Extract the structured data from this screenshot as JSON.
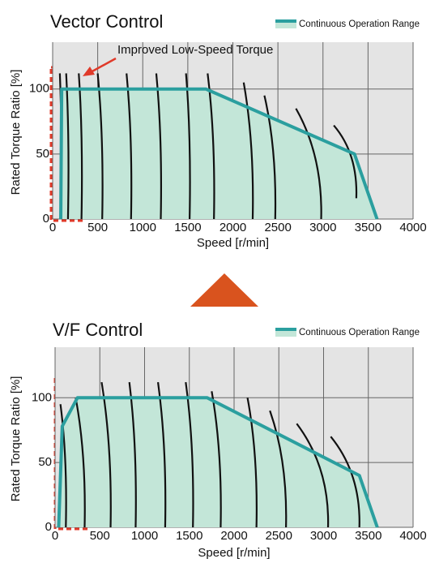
{
  "chart_data": [
    {
      "type": "area",
      "title": "Vector Control",
      "xlabel": "Speed [r/min]",
      "ylabel": "Rated Torque Ratio [%]",
      "annotation": "Improved Low-Speed Torque",
      "xlim": [
        0,
        4000
      ],
      "xticks": [
        0,
        500,
        1000,
        1500,
        2000,
        2500,
        3000,
        3500,
        4000
      ],
      "ylim": [
        0,
        136
      ],
      "yticks": [
        0,
        50,
        100
      ],
      "grid": true,
      "series": [
        {
          "name": "Continuous Operation Range",
          "color": "#2b9f9f",
          "fill": "#c3e6d8",
          "x": [
            90,
            100,
            1700,
            3350,
            3600
          ],
          "values": [
            0,
            100,
            100,
            50,
            0
          ]
        }
      ],
      "curve_color": "#111111",
      "curves": [
        {
          "x": [
            80,
            90
          ],
          "values": [
            112,
            0
          ]
        },
        {
          "x": [
            150,
            170
          ],
          "values": [
            112,
            0
          ]
        },
        {
          "x": [
            290,
            320
          ],
          "values": [
            112,
            0
          ]
        },
        {
          "x": [
            500,
            550
          ],
          "values": [
            112,
            0
          ]
        },
        {
          "x": [
            820,
            870
          ],
          "values": [
            112,
            0
          ]
        },
        {
          "x": [
            1150,
            1200
          ],
          "values": [
            112,
            0
          ]
        },
        {
          "x": [
            1480,
            1520
          ],
          "values": [
            112,
            0
          ]
        },
        {
          "x": [
            1720,
            1790
          ],
          "values": [
            112,
            0
          ]
        },
        {
          "x": [
            2120,
            2220
          ],
          "values": [
            105,
            0
          ]
        },
        {
          "x": [
            2350,
            2470
          ],
          "values": [
            95,
            0
          ]
        },
        {
          "x": [
            2700,
            2980
          ],
          "values": [
            85,
            0
          ]
        },
        {
          "x": [
            3120,
            3370
          ],
          "values": [
            72,
            16
          ]
        }
      ]
    },
    {
      "type": "area",
      "title": "V/F Control",
      "xlabel": "Speed [r/min]",
      "ylabel": "Rated Torque Ratio [%]",
      "xlim": [
        0,
        4000
      ],
      "xticks": [
        0,
        500,
        1000,
        1500,
        2000,
        2500,
        3000,
        3500,
        4000
      ],
      "ylim": [
        0,
        139
      ],
      "yticks": [
        0,
        50,
        100
      ],
      "grid": true,
      "series": [
        {
          "name": "Continuous Operation Range",
          "color": "#2b9f9f",
          "fill": "#c3e6d8",
          "x": [
            40,
            80,
            250,
            1700,
            3400,
            3600
          ],
          "values": [
            0,
            78,
            100,
            100,
            40,
            0
          ]
        }
      ],
      "curve_color": "#111111",
      "curves": [
        {
          "x": [
            60,
            120
          ],
          "values": [
            95,
            0
          ]
        },
        {
          "x": [
            230,
            330
          ],
          "values": [
            100,
            0
          ]
        },
        {
          "x": [
            520,
            620
          ],
          "values": [
            112,
            0
          ]
        },
        {
          "x": [
            830,
            900
          ],
          "values": [
            112,
            0
          ]
        },
        {
          "x": [
            1150,
            1230
          ],
          "values": [
            112,
            0
          ]
        },
        {
          "x": [
            1460,
            1540
          ],
          "values": [
            112,
            0
          ]
        },
        {
          "x": [
            1750,
            1850
          ],
          "values": [
            105,
            0
          ]
        },
        {
          "x": [
            2150,
            2250
          ],
          "values": [
            100,
            0
          ]
        },
        {
          "x": [
            2400,
            2580
          ],
          "values": [
            90,
            0
          ]
        },
        {
          "x": [
            2700,
            3050
          ],
          "values": [
            80,
            0
          ]
        },
        {
          "x": [
            3080,
            3400
          ],
          "values": [
            70,
            0
          ]
        }
      ]
    }
  ]
}
